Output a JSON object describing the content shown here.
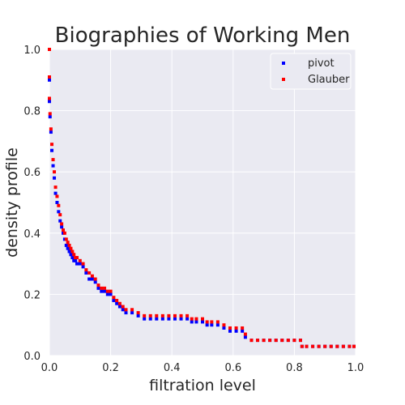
{
  "chart_data": {
    "type": "scatter",
    "title": "Biographies of Working Men",
    "xlabel": "filtration level",
    "ylabel": "density profile",
    "xlim": [
      0,
      1
    ],
    "ylim": [
      0,
      1
    ],
    "xticks": [
      0.0,
      0.2,
      0.4,
      0.6,
      0.8,
      1.0
    ],
    "yticks": [
      0.0,
      0.2,
      0.4,
      0.6,
      0.8,
      1.0
    ],
    "xtick_labels": [
      "0.0",
      "0.2",
      "0.4",
      "0.6",
      "0.8",
      "1.0"
    ],
    "ytick_labels": [
      "0.0",
      "0.2",
      "0.4",
      "0.6",
      "0.8",
      "1.0"
    ],
    "grid": true,
    "background_color": "#EAEAF2",
    "legend": {
      "position": "top-right"
    },
    "series": [
      {
        "name": "pivot",
        "color": "#0000FF",
        "x": [
          0.0,
          0.0,
          0.0,
          0.002,
          0.005,
          0.008,
          0.012,
          0.016,
          0.02,
          0.025,
          0.03,
          0.035,
          0.04,
          0.045,
          0.05,
          0.055,
          0.06,
          0.065,
          0.07,
          0.075,
          0.08,
          0.085,
          0.09,
          0.1,
          0.11,
          0.12,
          0.13,
          0.14,
          0.15,
          0.16,
          0.17,
          0.18,
          0.19,
          0.2,
          0.21,
          0.22,
          0.23,
          0.24,
          0.25,
          0.27,
          0.29,
          0.31,
          0.33,
          0.35,
          0.37,
          0.39,
          0.41,
          0.43,
          0.45,
          0.465,
          0.48,
          0.5,
          0.515,
          0.53,
          0.55,
          0.57,
          0.59,
          0.61,
          0.63,
          0.64,
          0.66,
          0.68,
          0.7,
          0.72,
          0.74,
          0.76,
          0.78,
          0.8,
          0.82,
          0.825,
          0.84,
          0.86,
          0.88,
          0.9,
          0.92,
          0.94,
          0.96,
          0.98,
          1.0
        ],
        "y": [
          1.0,
          0.9,
          0.83,
          0.78,
          0.73,
          0.67,
          0.62,
          0.58,
          0.53,
          0.5,
          0.47,
          0.44,
          0.42,
          0.4,
          0.38,
          0.36,
          0.35,
          0.34,
          0.33,
          0.32,
          0.31,
          0.31,
          0.3,
          0.3,
          0.29,
          0.27,
          0.25,
          0.25,
          0.24,
          0.22,
          0.21,
          0.21,
          0.2,
          0.2,
          0.18,
          0.17,
          0.16,
          0.15,
          0.14,
          0.14,
          0.13,
          0.12,
          0.12,
          0.12,
          0.12,
          0.12,
          0.12,
          0.12,
          0.12,
          0.11,
          0.11,
          0.11,
          0.1,
          0.1,
          0.1,
          0.09,
          0.08,
          0.08,
          0.08,
          0.06,
          0.05,
          0.05,
          0.05,
          0.05,
          0.05,
          0.05,
          0.05,
          0.05,
          0.05,
          0.03,
          0.03,
          0.03,
          0.03,
          0.03,
          0.03,
          0.03,
          0.03,
          0.03,
          0.03
        ]
      },
      {
        "name": "Glauber",
        "color": "#FF0000",
        "x": [
          0.0,
          0.0,
          0.0,
          0.002,
          0.005,
          0.008,
          0.012,
          0.016,
          0.02,
          0.025,
          0.03,
          0.035,
          0.04,
          0.045,
          0.05,
          0.055,
          0.06,
          0.065,
          0.07,
          0.075,
          0.08,
          0.085,
          0.09,
          0.1,
          0.11,
          0.12,
          0.13,
          0.14,
          0.15,
          0.16,
          0.17,
          0.18,
          0.19,
          0.2,
          0.21,
          0.22,
          0.23,
          0.24,
          0.25,
          0.27,
          0.29,
          0.31,
          0.33,
          0.35,
          0.37,
          0.39,
          0.41,
          0.43,
          0.45,
          0.465,
          0.48,
          0.5,
          0.515,
          0.53,
          0.55,
          0.57,
          0.59,
          0.61,
          0.63,
          0.64,
          0.66,
          0.68,
          0.7,
          0.72,
          0.74,
          0.76,
          0.78,
          0.8,
          0.82,
          0.825,
          0.84,
          0.86,
          0.88,
          0.9,
          0.92,
          0.94,
          0.96,
          0.98,
          1.0
        ],
        "y": [
          1.0,
          0.91,
          0.84,
          0.79,
          0.74,
          0.69,
          0.64,
          0.6,
          0.55,
          0.52,
          0.49,
          0.46,
          0.43,
          0.41,
          0.4,
          0.38,
          0.37,
          0.36,
          0.35,
          0.34,
          0.33,
          0.32,
          0.32,
          0.31,
          0.3,
          0.28,
          0.27,
          0.26,
          0.25,
          0.23,
          0.22,
          0.22,
          0.21,
          0.21,
          0.19,
          0.18,
          0.17,
          0.16,
          0.15,
          0.15,
          0.14,
          0.13,
          0.13,
          0.13,
          0.13,
          0.13,
          0.13,
          0.13,
          0.13,
          0.12,
          0.12,
          0.12,
          0.11,
          0.11,
          0.11,
          0.1,
          0.09,
          0.09,
          0.09,
          0.07,
          0.05,
          0.05,
          0.05,
          0.05,
          0.05,
          0.05,
          0.05,
          0.05,
          0.05,
          0.03,
          0.03,
          0.03,
          0.03,
          0.03,
          0.03,
          0.03,
          0.03,
          0.03,
          0.03
        ]
      }
    ]
  }
}
